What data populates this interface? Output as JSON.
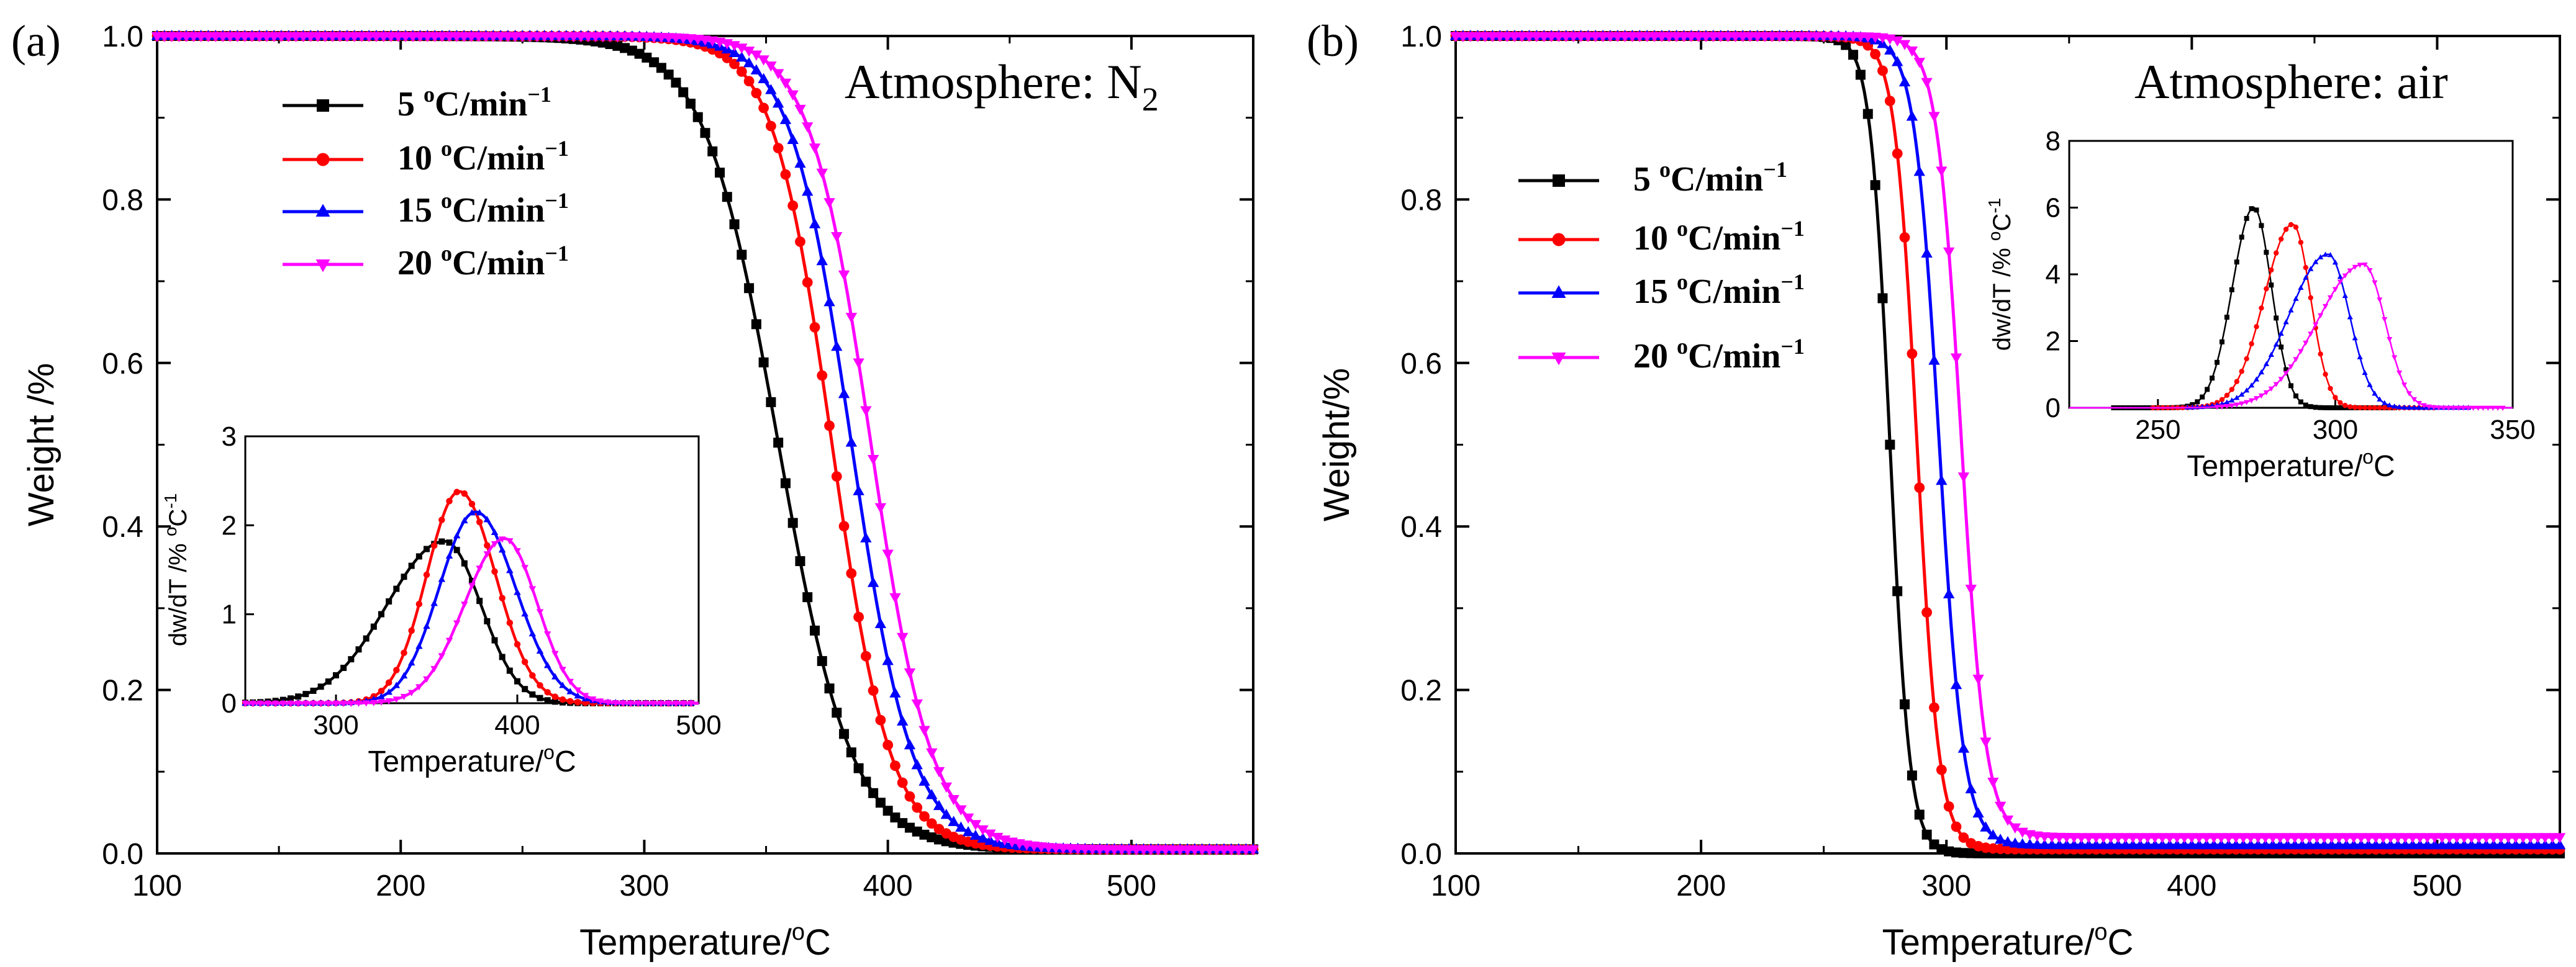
{
  "chart_data": [
    {
      "panel_label": "(a)",
      "type": "line",
      "annotation": {
        "text": "Atmosphere: N",
        "subscript": "2"
      },
      "xlabel": {
        "text": "Temperature/",
        "sup": "o",
        "tail": "C"
      },
      "ylabel": "Weight /%",
      "xlim": [
        100,
        550
      ],
      "ylim": [
        0,
        1
      ],
      "xticks": [
        100,
        200,
        300,
        400,
        500
      ],
      "yticks": [
        0.0,
        0.2,
        0.4,
        0.6,
        0.8,
        1.0
      ],
      "ytick_labels": [
        "0.0",
        "0.2",
        "0.4",
        "0.6",
        "0.8",
        "1.0"
      ],
      "legend_position": "top-left",
      "series": [
        {
          "name": "5",
          "legend": {
            "num": "5",
            "sup": "o",
            "unit": "C/min",
            "exp": "−1"
          },
          "color": "#000000",
          "marker": "square",
          "t50": 355,
          "width": 15,
          "final": 0.005
        },
        {
          "name": "10",
          "legend": {
            "num": "10",
            "sup": "o",
            "unit": "C/min",
            "exp": "−1"
          },
          "color": "#ff0000",
          "marker": "circle",
          "t50": 377,
          "width": 12,
          "final": 0.005
        },
        {
          "name": "15",
          "legend": {
            "num": "15",
            "sup": "o",
            "unit": "C/min",
            "exp": "−1"
          },
          "color": "#0000ff",
          "marker": "triangle-up",
          "t50": 385,
          "width": 12.5,
          "final": 0.005
        },
        {
          "name": "20",
          "legend": {
            "num": "20",
            "sup": "o",
            "unit": "C/min",
            "exp": "−1"
          },
          "color": "#ff00ff",
          "marker": "triangle-down",
          "t50": 393,
          "width": 12.5,
          "final": 0.005
        }
      ],
      "inset": {
        "ylabel": {
          "text": "dw/dT /% ",
          "sup_o": "o",
          "tail": "C",
          "exp": "-1"
        },
        "xlabel": {
          "text": "Temperature/",
          "sup": "o",
          "tail": "C"
        },
        "xlim": [
          250,
          500
        ],
        "ylim": [
          0,
          3
        ],
        "xticks": [
          300,
          400,
          500
        ],
        "yticks": [
          0,
          1,
          2,
          3
        ],
        "peaks": [
          {
            "center": 360,
            "height": 1.82,
            "sigma_left": 32,
            "sigma_right": 20
          },
          {
            "center": 368,
            "height": 2.38,
            "sigma_left": 18,
            "sigma_right": 20
          },
          {
            "center": 377,
            "height": 2.15,
            "sigma_left": 20,
            "sigma_right": 22
          },
          {
            "center": 393,
            "height": 1.85,
            "sigma_left": 22,
            "sigma_right": 18
          }
        ]
      }
    },
    {
      "panel_label": "(b)",
      "type": "line",
      "annotation": {
        "text": "Atmosphere: air",
        "subscript": ""
      },
      "xlabel": {
        "text": "Temperature/",
        "sup": "o",
        "tail": "C"
      },
      "ylabel": "Weight/%",
      "xlim": [
        100,
        550
      ],
      "ylim": [
        0,
        1
      ],
      "xticks": [
        100,
        200,
        300,
        400,
        500
      ],
      "yticks": [
        0.0,
        0.2,
        0.4,
        0.6,
        0.8,
        1.0
      ],
      "ytick_labels": [
        "0.0",
        "0.2",
        "0.4",
        "0.6",
        "0.8",
        "1.0"
      ],
      "legend_position": "top-left",
      "series": [
        {
          "name": "5",
          "legend": {
            "num": "5",
            "sup": "o",
            "unit": "C/min",
            "exp": "−1"
          },
          "color": "#000000",
          "marker": "square",
          "t50": 277,
          "width": 4,
          "final": 0.0
        },
        {
          "name": "10",
          "legend": {
            "num": "10",
            "sup": "o",
            "unit": "C/min",
            "exp": "−1"
          },
          "color": "#ff0000",
          "marker": "circle",
          "t50": 288,
          "width": 4.5,
          "final": 0.005
        },
        {
          "name": "15",
          "legend": {
            "num": "15",
            "sup": "o",
            "unit": "C/min",
            "exp": "−1"
          },
          "color": "#0000ff",
          "marker": "triangle-up",
          "t50": 297,
          "width": 5,
          "final": 0.01
        },
        {
          "name": "20",
          "legend": {
            "num": "20",
            "sup": "o",
            "unit": "C/min",
            "exp": "−1"
          },
          "color": "#ff00ff",
          "marker": "triangle-down",
          "t50": 306,
          "width": 5,
          "final": 0.02
        }
      ],
      "inset": {
        "ylabel": {
          "text": "dw/dT /% ",
          "sup_o": "o",
          "tail": "C",
          "exp": "-1"
        },
        "xlabel": {
          "text": "Temperature/",
          "sup": "o",
          "tail": "C"
        },
        "xlim": [
          225,
          350
        ],
        "ylim": [
          0,
          8
        ],
        "xticks": [
          250,
          300,
          350
        ],
        "yticks": [
          0,
          2,
          4,
          6,
          8
        ],
        "peaks": [
          {
            "center": 277,
            "height": 6.0,
            "sigma_left": 6,
            "sigma_right": 5
          },
          {
            "center": 288,
            "height": 5.5,
            "sigma_left": 8,
            "sigma_right": 5
          },
          {
            "center": 298,
            "height": 4.6,
            "sigma_left": 11,
            "sigma_right": 6
          },
          {
            "center": 308,
            "height": 4.3,
            "sigma_left": 13,
            "sigma_right": 6
          }
        ]
      }
    }
  ]
}
